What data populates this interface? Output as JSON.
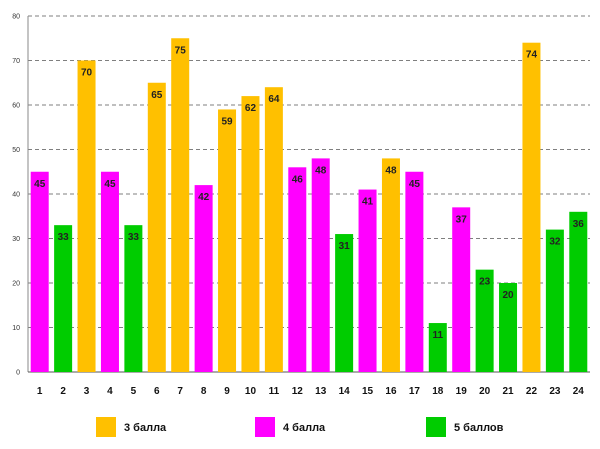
{
  "chart_data": {
    "type": "bar",
    "title": "",
    "xlabel": "",
    "ylabel": "",
    "ylim": [
      0,
      80
    ],
    "yticks": [
      0,
      10,
      20,
      30,
      40,
      50,
      60,
      70,
      80
    ],
    "grid": true,
    "legend_position": "bottom",
    "categories": [
      "1",
      "2",
      "3",
      "4",
      "5",
      "6",
      "7",
      "8",
      "9",
      "10",
      "11",
      "12",
      "13",
      "14",
      "15",
      "16",
      "17",
      "18",
      "19",
      "20",
      "21",
      "22",
      "23",
      "24"
    ],
    "values": [
      45,
      33,
      70,
      45,
      33,
      65,
      75,
      42,
      59,
      62,
      64,
      46,
      48,
      31,
      41,
      48,
      45,
      11,
      37,
      23,
      20,
      74,
      32,
      36
    ],
    "groups": [
      "4 балла",
      "5 баллов",
      "3 балла",
      "4 балла",
      "5 баллов",
      "3 балла",
      "3 балла",
      "4 балла",
      "3 балла",
      "3 балла",
      "3 балла",
      "4 балла",
      "4 балла",
      "5 баллов",
      "4 балла",
      "3 балла",
      "4 балла",
      "5 баллов",
      "4 балла",
      "5 баллов",
      "5 баллов",
      "3 балла",
      "5 баллов",
      "5 баллов"
    ],
    "legend": [
      {
        "name": "3 балла",
        "color": "#FFC000"
      },
      {
        "name": "4 балла",
        "color": "#FF00FF"
      },
      {
        "name": "5 баллов",
        "color": "#00CC00"
      }
    ]
  }
}
